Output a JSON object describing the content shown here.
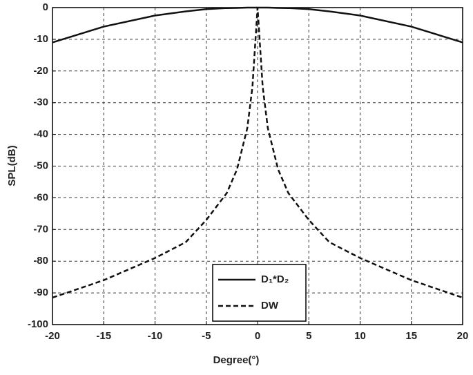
{
  "chart_data": {
    "type": "line",
    "xlabel": "Degree(°)",
    "ylabel": "SPL(dB)",
    "x": [
      -20,
      -15,
      -10,
      -7,
      -5,
      -3,
      -2,
      -1,
      -0.5,
      -0.2,
      0,
      0.2,
      0.5,
      1,
      2,
      3,
      5,
      7,
      10,
      15,
      20
    ],
    "series": [
      {
        "name": "D₁*D₂",
        "color": "#111111",
        "dash": "solid",
        "values": [
          -11,
          -6,
          -2.5,
          -1.2,
          -0.5,
          -0.15,
          -0.1,
          0,
          0,
          0,
          0,
          0,
          0,
          0,
          -0.1,
          -0.15,
          -0.5,
          -1.2,
          -2.5,
          -6,
          -11
        ]
      },
      {
        "name": "DW",
        "color": "#111111",
        "dash": "dashed",
        "values": [
          -91.5,
          -86,
          -79,
          -74,
          -67,
          -58.5,
          -51,
          -38,
          -25,
          -10,
          0,
          -10,
          -25,
          -38,
          -51,
          -58.5,
          -67,
          -74,
          -79,
          -86,
          -91.5
        ]
      }
    ],
    "xlim": [
      -20,
      20
    ],
    "ylim": [
      -100,
      0
    ],
    "xticks": [
      -20,
      -15,
      -10,
      -5,
      0,
      5,
      10,
      15,
      20
    ],
    "yticks": [
      0,
      -10,
      -20,
      -30,
      -40,
      -50,
      -60,
      -70,
      -80,
      -90,
      -100
    ],
    "grid": true,
    "legend": "lower center"
  }
}
